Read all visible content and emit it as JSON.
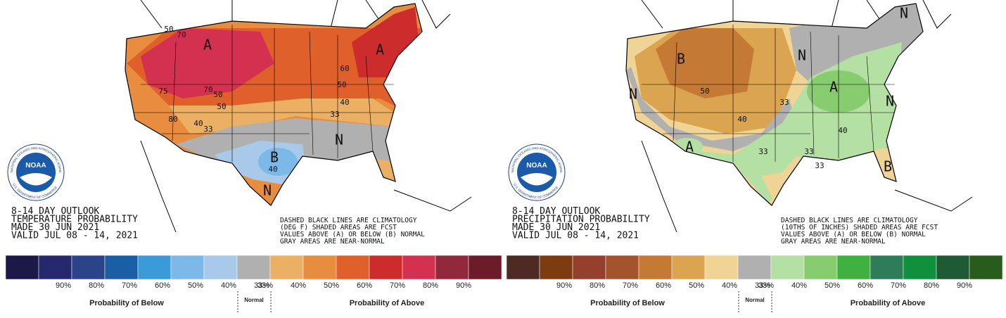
{
  "panels": [
    {
      "title_lines": [
        "8-14 DAY OUTLOOK",
        "TEMPERATURE PROBABILITY",
        "MADE  30 JUN 2021",
        "VALID  JUL 08 - 14, 2021"
      ],
      "note_lines": [
        "DASHED BLACK LINES ARE CLIMATOLOGY",
        "(DEG F) SHADED AREAS ARE FCST",
        "VALUES ABOVE (A) OR BELOW (B) NORMAL",
        "GRAY AREAS ARE NEAR-NORMAL"
      ],
      "map_labels": [
        "A",
        "A",
        "B",
        "N",
        "N",
        "50",
        "70",
        "75",
        "70",
        "50",
        "50",
        "80",
        "40",
        "33",
        "60",
        "50",
        "40",
        "33",
        "40"
      ],
      "legend": {
        "labels": [
          "90%",
          "80%",
          "70%",
          "60%",
          "50%",
          "40%",
          "33%",
          "33%",
          "40%",
          "50%",
          "60%",
          "70%",
          "80%",
          "90%"
        ],
        "colors": [
          "#1c1848",
          "#26286e",
          "#2b4388",
          "#1a5fa6",
          "#3b9bd8",
          "#7db9e8",
          "#a9c9ea",
          "#b0b0b0",
          "#ecb064",
          "#e88c40",
          "#e0602c",
          "#cc2c2c",
          "#d43050",
          "#92283c",
          "#6c1c28"
        ]
      },
      "below": "Probability of Below",
      "normal": "Normal",
      "above": "Probability of Above",
      "logo": {
        "name": "NOAA",
        "ring_top": "NATIONAL OCEANIC AND ATMOSPHERIC ADMINISTRATION",
        "ring_bottom": "U.S. DEPARTMENT OF COMMERCE"
      }
    },
    {
      "title_lines": [
        "8-14 DAY OUTLOOK",
        "PRECIPITATION PROBABILITY",
        "MADE  30 JUN 2021",
        "VALID  JUL 08 - 14, 2021"
      ],
      "note_lines": [
        "DASHED BLACK LINES ARE CLIMATOLOGY",
        "(10THS OF INCHES) SHADED AREAS ARE FCST",
        "VALUES ABOVE (A) OR BELOW (B) NORMAL",
        "GRAY AREAS ARE NEAR-NORMAL"
      ],
      "map_labels": [
        "B",
        "N",
        "N",
        "N",
        "N",
        "A",
        "A",
        "B",
        "50",
        "40",
        "33",
        "33",
        "33",
        "40",
        "33"
      ],
      "legend": {
        "labels": [
          "90%",
          "80%",
          "70%",
          "60%",
          "50%",
          "40%",
          "33%",
          "33%",
          "40%",
          "50%",
          "60%",
          "70%",
          "80%",
          "90%"
        ],
        "colors": [
          "#4e2a24",
          "#7c3c10",
          "#94402c",
          "#a4542c",
          "#c47a34",
          "#daa450",
          "#f0d496",
          "#b0b0b0",
          "#b4e0a4",
          "#88cc70",
          "#40b040",
          "#2e7c58",
          "#10903c",
          "#1e5a34",
          "#285c1c"
        ]
      },
      "below": "Probability of Below",
      "normal": "Normal",
      "above": "Probability of Above",
      "logo": {
        "name": "NOAA",
        "ring_top": "NATIONAL OCEANIC AND ATMOSPHERIC ADMINISTRATION",
        "ring_bottom": "U.S. DEPARTMENT OF COMMERCE"
      }
    }
  ]
}
